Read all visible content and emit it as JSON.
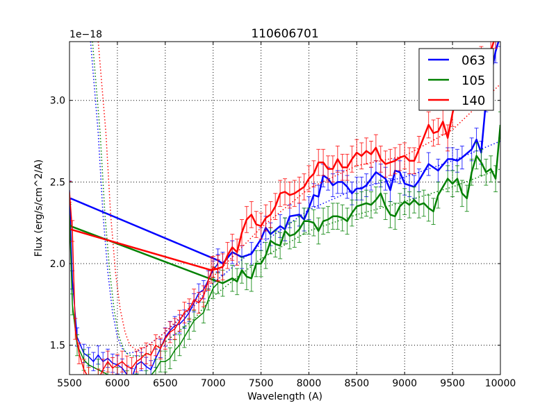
{
  "chart_data": {
    "type": "line",
    "title": "110606701",
    "xlabel": "Wavelength (A)",
    "ylabel": "Flux (erg/s/cm^2/A)",
    "y_offset_label": "1e−18",
    "xlim": [
      5500,
      10000
    ],
    "ylim": [
      1.32,
      3.36
    ],
    "xticks": [
      5500,
      6000,
      6500,
      7000,
      7500,
      8000,
      8500,
      9000,
      9500,
      10000
    ],
    "yticks": [
      1.5,
      2.0,
      2.5,
      3.0
    ],
    "ytick_labels": [
      "1.5",
      "2.0",
      "2.5",
      "3.0"
    ],
    "grid": true,
    "legend_position": "top-right",
    "series": [
      {
        "name": "063",
        "color": "#0000ff",
        "yerr": 0.07,
        "thin": [
          [
            5500,
            2.45
          ],
          [
            5530,
            1.9
          ],
          [
            5580,
            1.55
          ],
          [
            5650,
            1.45
          ],
          [
            5700,
            1.43
          ],
          [
            5750,
            1.4
          ],
          [
            5800,
            1.44
          ],
          [
            5850,
            1.4
          ],
          [
            5900,
            1.42
          ],
          [
            5950,
            1.39
          ],
          [
            6000,
            1.38
          ],
          [
            6050,
            1.36
          ],
          [
            6100,
            1.32
          ],
          [
            6150,
            1.3
          ],
          [
            6200,
            1.38
          ],
          [
            6250,
            1.4
          ],
          [
            6300,
            1.37
          ],
          [
            6350,
            1.35
          ],
          [
            6400,
            1.42
          ],
          [
            6450,
            1.48
          ],
          [
            6500,
            1.55
          ],
          [
            6550,
            1.59
          ],
          [
            6600,
            1.62
          ],
          [
            6650,
            1.63
          ],
          [
            6700,
            1.66
          ],
          [
            6750,
            1.7
          ],
          [
            6800,
            1.76
          ],
          [
            6850,
            1.82
          ],
          [
            6900,
            1.84
          ],
          [
            6950,
            1.9
          ],
          [
            7000,
            1.96
          ],
          [
            7050,
            2.0
          ]
        ],
        "thick": [
          [
            5510,
            2.4
          ],
          [
            7050,
            2.02
          ],
          [
            7100,
            2.0
          ],
          [
            7200,
            2.07
          ],
          [
            7300,
            2.04
          ],
          [
            7400,
            2.06
          ],
          [
            7500,
            2.15
          ],
          [
            7550,
            2.22
          ],
          [
            7600,
            2.18
          ],
          [
            7700,
            2.23
          ],
          [
            7750,
            2.21
          ],
          [
            7800,
            2.29
          ],
          [
            7900,
            2.3
          ],
          [
            7950,
            2.27
          ],
          [
            8000,
            2.34
          ],
          [
            8050,
            2.42
          ],
          [
            8100,
            2.41
          ],
          [
            8150,
            2.54
          ],
          [
            8200,
            2.52
          ],
          [
            8250,
            2.48
          ],
          [
            8300,
            2.5
          ],
          [
            8350,
            2.5
          ],
          [
            8400,
            2.47
          ],
          [
            8450,
            2.43
          ],
          [
            8500,
            2.46
          ],
          [
            8550,
            2.46
          ],
          [
            8600,
            2.48
          ],
          [
            8650,
            2.52
          ],
          [
            8700,
            2.56
          ],
          [
            8750,
            2.54
          ],
          [
            8800,
            2.52
          ],
          [
            8850,
            2.45
          ],
          [
            8900,
            2.57
          ],
          [
            8950,
            2.56
          ],
          [
            9000,
            2.49
          ],
          [
            9050,
            2.48
          ],
          [
            9100,
            2.47
          ],
          [
            9150,
            2.51
          ],
          [
            9250,
            2.61
          ],
          [
            9350,
            2.57
          ],
          [
            9450,
            2.64
          ],
          [
            9500,
            2.64
          ],
          [
            9550,
            2.63
          ],
          [
            9600,
            2.65
          ],
          [
            9700,
            2.7
          ],
          [
            9750,
            2.76
          ],
          [
            9800,
            2.68
          ],
          [
            9850,
            3.0
          ],
          [
            9950,
            3.3
          ],
          [
            10000,
            3.4
          ]
        ],
        "model": [
          [
            5720,
            3.36
          ],
          [
            5800,
            2.8
          ],
          [
            5850,
            2.3
          ],
          [
            5900,
            1.95
          ],
          [
            5950,
            1.7
          ],
          [
            6000,
            1.55
          ],
          [
            6050,
            1.48
          ],
          [
            6100,
            1.45
          ],
          [
            6200,
            1.46
          ],
          [
            6300,
            1.49
          ],
          [
            6500,
            1.58
          ],
          [
            6800,
            1.74
          ],
          [
            7000,
            1.88
          ],
          [
            7500,
            2.12
          ],
          [
            8000,
            2.33
          ],
          [
            8500,
            2.46
          ],
          [
            9000,
            2.53
          ],
          [
            9500,
            2.63
          ],
          [
            10000,
            2.75
          ]
        ]
      },
      {
        "name": "105",
        "color": "#008000",
        "yerr": 0.08,
        "thin": [
          [
            5500,
            2.3
          ],
          [
            5530,
            1.75
          ],
          [
            5580,
            1.5
          ],
          [
            5650,
            1.41
          ],
          [
            5700,
            1.38
          ],
          [
            5800,
            1.35
          ],
          [
            5900,
            1.32
          ],
          [
            6000,
            1.3
          ],
          [
            6100,
            1.28
          ],
          [
            6200,
            1.26
          ],
          [
            6300,
            1.28
          ],
          [
            6400,
            1.35
          ],
          [
            6450,
            1.4
          ],
          [
            6500,
            1.4
          ],
          [
            6550,
            1.42
          ],
          [
            6600,
            1.47
          ],
          [
            6650,
            1.5
          ],
          [
            6700,
            1.55
          ],
          [
            6750,
            1.6
          ],
          [
            6800,
            1.65
          ],
          [
            6900,
            1.7
          ],
          [
            6950,
            1.78
          ],
          [
            7000,
            1.85
          ],
          [
            7050,
            1.88
          ]
        ],
        "thick": [
          [
            5510,
            2.23
          ],
          [
            7000,
            1.9
          ],
          [
            7100,
            1.88
          ],
          [
            7200,
            1.91
          ],
          [
            7250,
            1.89
          ],
          [
            7300,
            1.96
          ],
          [
            7350,
            1.92
          ],
          [
            7400,
            1.91
          ],
          [
            7450,
            2.0
          ],
          [
            7500,
            2.0
          ],
          [
            7550,
            2.05
          ],
          [
            7600,
            2.14
          ],
          [
            7650,
            2.12
          ],
          [
            7700,
            2.11
          ],
          [
            7750,
            2.2
          ],
          [
            7800,
            2.17
          ],
          [
            7850,
            2.18
          ],
          [
            7900,
            2.21
          ],
          [
            7950,
            2.26
          ],
          [
            8000,
            2.26
          ],
          [
            8050,
            2.25
          ],
          [
            8100,
            2.2
          ],
          [
            8150,
            2.26
          ],
          [
            8200,
            2.27
          ],
          [
            8250,
            2.29
          ],
          [
            8300,
            2.29
          ],
          [
            8350,
            2.28
          ],
          [
            8400,
            2.26
          ],
          [
            8450,
            2.31
          ],
          [
            8500,
            2.35
          ],
          [
            8550,
            2.36
          ],
          [
            8600,
            2.37
          ],
          [
            8650,
            2.36
          ],
          [
            8700,
            2.39
          ],
          [
            8750,
            2.43
          ],
          [
            8800,
            2.35
          ],
          [
            8850,
            2.3
          ],
          [
            8900,
            2.29
          ],
          [
            8950,
            2.35
          ],
          [
            9000,
            2.38
          ],
          [
            9050,
            2.36
          ],
          [
            9100,
            2.39
          ],
          [
            9150,
            2.36
          ],
          [
            9200,
            2.37
          ],
          [
            9250,
            2.34
          ],
          [
            9300,
            2.32
          ],
          [
            9350,
            2.42
          ],
          [
            9450,
            2.52
          ],
          [
            9500,
            2.49
          ],
          [
            9550,
            2.52
          ],
          [
            9600,
            2.43
          ],
          [
            9650,
            2.4
          ],
          [
            9700,
            2.56
          ],
          [
            9750,
            2.66
          ],
          [
            9800,
            2.62
          ],
          [
            9850,
            2.56
          ],
          [
            9900,
            2.58
          ],
          [
            9950,
            2.52
          ],
          [
            10000,
            2.85
          ]
        ],
        "model": [
          [
            5740,
            3.36
          ],
          [
            5820,
            2.8
          ],
          [
            5870,
            2.3
          ],
          [
            5920,
            1.95
          ],
          [
            5970,
            1.7
          ],
          [
            6020,
            1.55
          ],
          [
            6070,
            1.47
          ],
          [
            6120,
            1.44
          ],
          [
            6200,
            1.43
          ],
          [
            6300,
            1.44
          ],
          [
            6500,
            1.52
          ],
          [
            6800,
            1.66
          ],
          [
            7000,
            1.8
          ],
          [
            7500,
            2.03
          ],
          [
            8000,
            2.2
          ],
          [
            8500,
            2.3
          ],
          [
            9000,
            2.38
          ],
          [
            9500,
            2.47
          ],
          [
            10000,
            2.58
          ]
        ]
      },
      {
        "name": "140",
        "color": "#ff0000",
        "yerr": 0.08,
        "thin": [
          [
            5500,
            2.44
          ],
          [
            5530,
            2.2
          ],
          [
            5560,
            1.6
          ],
          [
            5600,
            1.45
          ],
          [
            5650,
            1.35
          ],
          [
            5700,
            1.3
          ],
          [
            5800,
            1.29
          ],
          [
            5850,
            1.35
          ],
          [
            5900,
            1.4
          ],
          [
            5950,
            1.36
          ],
          [
            6000,
            1.38
          ],
          [
            6050,
            1.4
          ],
          [
            6100,
            1.37
          ],
          [
            6150,
            1.36
          ],
          [
            6200,
            1.4
          ],
          [
            6250,
            1.42
          ],
          [
            6300,
            1.45
          ],
          [
            6350,
            1.44
          ],
          [
            6400,
            1.5
          ],
          [
            6450,
            1.48
          ],
          [
            6500,
            1.54
          ],
          [
            6550,
            1.58
          ],
          [
            6600,
            1.6
          ],
          [
            6650,
            1.65
          ],
          [
            6700,
            1.7
          ],
          [
            6750,
            1.72
          ],
          [
            6800,
            1.78
          ],
          [
            6850,
            1.76
          ],
          [
            6900,
            1.8
          ],
          [
            6950,
            1.9
          ],
          [
            7000,
            1.98
          ],
          [
            7050,
            1.96
          ]
        ],
        "thick": [
          [
            5510,
            2.21
          ],
          [
            6980,
            1.96
          ],
          [
            7050,
            1.97
          ],
          [
            7100,
            1.98
          ],
          [
            7150,
            2.05
          ],
          [
            7200,
            2.1
          ],
          [
            7250,
            2.07
          ],
          [
            7300,
            2.19
          ],
          [
            7350,
            2.27
          ],
          [
            7400,
            2.3
          ],
          [
            7450,
            2.24
          ],
          [
            7500,
            2.23
          ],
          [
            7550,
            2.28
          ],
          [
            7600,
            2.3
          ],
          [
            7650,
            2.35
          ],
          [
            7700,
            2.43
          ],
          [
            7750,
            2.44
          ],
          [
            7800,
            2.42
          ],
          [
            7850,
            2.43
          ],
          [
            7900,
            2.45
          ],
          [
            7950,
            2.47
          ],
          [
            8000,
            2.52
          ],
          [
            8050,
            2.55
          ],
          [
            8100,
            2.62
          ],
          [
            8150,
            2.62
          ],
          [
            8200,
            2.58
          ],
          [
            8250,
            2.58
          ],
          [
            8300,
            2.64
          ],
          [
            8350,
            2.59
          ],
          [
            8400,
            2.59
          ],
          [
            8450,
            2.64
          ],
          [
            8500,
            2.68
          ],
          [
            8550,
            2.66
          ],
          [
            8600,
            2.69
          ],
          [
            8650,
            2.67
          ],
          [
            8700,
            2.71
          ],
          [
            8750,
            2.64
          ],
          [
            8800,
            2.61
          ],
          [
            8850,
            2.62
          ],
          [
            8900,
            2.63
          ],
          [
            8950,
            2.65
          ],
          [
            9000,
            2.66
          ],
          [
            9050,
            2.63
          ],
          [
            9100,
            2.63
          ],
          [
            9150,
            2.7
          ],
          [
            9250,
            2.85
          ],
          [
            9300,
            2.8
          ],
          [
            9350,
            2.81
          ],
          [
            9400,
            2.87
          ],
          [
            9450,
            2.77
          ],
          [
            9500,
            2.92
          ],
          [
            9550,
            3.05
          ],
          [
            9600,
            3.12
          ],
          [
            9700,
            3.2
          ],
          [
            9800,
            3.25
          ],
          [
            9900,
            3.3
          ],
          [
            9950,
            3.4
          ]
        ],
        "model": [
          [
            5800,
            3.36
          ],
          [
            5880,
            2.8
          ],
          [
            5930,
            2.3
          ],
          [
            5980,
            1.95
          ],
          [
            6030,
            1.72
          ],
          [
            6080,
            1.58
          ],
          [
            6130,
            1.5
          ],
          [
            6200,
            1.47
          ],
          [
            6300,
            1.49
          ],
          [
            6500,
            1.58
          ],
          [
            6800,
            1.76
          ],
          [
            7000,
            1.92
          ],
          [
            7500,
            2.22
          ],
          [
            8000,
            2.46
          ],
          [
            8500,
            2.6
          ],
          [
            9000,
            2.66
          ],
          [
            9500,
            2.82
          ],
          [
            10000,
            3.1
          ]
        ]
      }
    ]
  }
}
